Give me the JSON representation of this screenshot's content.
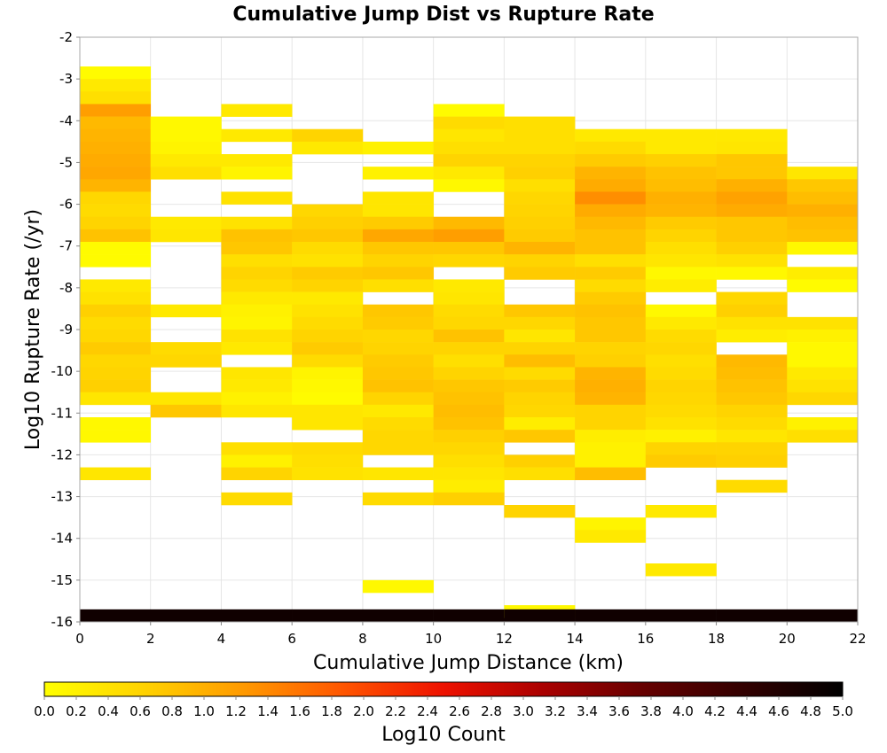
{
  "chart_data": {
    "type": "heatmap",
    "title": "Cumulative Jump Dist vs Rupture Rate",
    "xlabel": "Cumulative Jump Distance (km)",
    "ylabel": "Log10 Rupture Rate (/yr)",
    "colorbar_label": "Log10 Count",
    "xlim": [
      0,
      22
    ],
    "ylim": [
      -16,
      -2
    ],
    "x_ticks": [
      "0",
      "2",
      "4",
      "6",
      "8",
      "10",
      "12",
      "14",
      "16",
      "18",
      "20",
      "22"
    ],
    "y_ticks": [
      "-2",
      "-3",
      "-4",
      "-5",
      "-6",
      "-7",
      "-8",
      "-9",
      "-10",
      "-11",
      "-12",
      "-13",
      "-14",
      "-15",
      "-16"
    ],
    "colorbar_ticks": [
      "0.0",
      "0.2",
      "0.4",
      "0.6",
      "0.8",
      "1.0",
      "1.2",
      "1.4",
      "1.6",
      "1.8",
      "2.0",
      "2.2",
      "2.4",
      "2.6",
      "2.8",
      "3.0",
      "3.2",
      "3.4",
      "3.6",
      "3.8",
      "4.0",
      "4.2",
      "4.4",
      "4.6",
      "4.8",
      "5.0"
    ],
    "colorbar_range": [
      0,
      5
    ],
    "colormap": [
      "#ffff00",
      "#ffd200",
      "#ff9900",
      "#ff5500",
      "#ee1100",
      "#aa0000",
      "#660000",
      "#330000",
      "#000000"
    ],
    "grid": true,
    "x_bin_width": 2,
    "y_bin_height": 0.3,
    "columns": [
      {
        "x_start": 0,
        "cells": [
          [
            -3.0,
            0.05
          ],
          [
            -3.3,
            0.3
          ],
          [
            -3.6,
            0.45
          ],
          [
            -3.9,
            1.2
          ],
          [
            -4.2,
            0.9
          ],
          [
            -4.5,
            0.95
          ],
          [
            -4.8,
            1.0
          ],
          [
            -5.1,
            1.05
          ],
          [
            -5.4,
            1.1
          ],
          [
            -5.7,
            0.95
          ],
          [
            -6.0,
            0.55
          ],
          [
            -6.3,
            0.5
          ],
          [
            -6.6,
            0.6
          ],
          [
            -6.9,
            0.8
          ],
          [
            -7.2,
            0.05
          ],
          [
            -7.5,
            0.05
          ],
          [
            -8.1,
            0.3
          ],
          [
            -8.4,
            0.4
          ],
          [
            -8.7,
            0.65
          ],
          [
            -9.0,
            0.5
          ],
          [
            -9.3,
            0.55
          ],
          [
            -9.6,
            0.7
          ],
          [
            -9.9,
            0.55
          ],
          [
            -10.2,
            0.6
          ],
          [
            -10.5,
            0.65
          ],
          [
            -10.8,
            0.35
          ],
          [
            -11.4,
            0.1
          ],
          [
            -11.7,
            0.1
          ],
          [
            -12.6,
            0.35
          ],
          [
            -16.0,
            4.8
          ]
        ]
      },
      {
        "x_start": 2,
        "cells": [
          [
            -4.2,
            0.1
          ],
          [
            -4.5,
            0.1
          ],
          [
            -4.8,
            0.15
          ],
          [
            -5.1,
            0.3
          ],
          [
            -5.4,
            0.45
          ],
          [
            -6.6,
            0.3
          ],
          [
            -6.9,
            0.35
          ],
          [
            -8.7,
            0.3
          ],
          [
            -9.6,
            0.5
          ],
          [
            -9.9,
            0.55
          ],
          [
            -10.8,
            0.35
          ],
          [
            -11.1,
            0.75
          ],
          [
            -16.0,
            4.8
          ]
        ]
      },
      {
        "x_start": 4,
        "cells": [
          [
            -3.9,
            0.3
          ],
          [
            -4.5,
            0.3
          ],
          [
            -5.1,
            0.3
          ],
          [
            -5.4,
            0.15
          ],
          [
            -6.0,
            0.4
          ],
          [
            -6.6,
            0.4
          ],
          [
            -6.9,
            0.8
          ],
          [
            -7.2,
            0.75
          ],
          [
            -7.5,
            0.45
          ],
          [
            -7.8,
            0.6
          ],
          [
            -8.1,
            0.5
          ],
          [
            -8.4,
            0.3
          ],
          [
            -8.7,
            0.2
          ],
          [
            -9.0,
            0.15
          ],
          [
            -9.3,
            0.4
          ],
          [
            -9.6,
            0.3
          ],
          [
            -10.2,
            0.35
          ],
          [
            -10.5,
            0.3
          ],
          [
            -10.8,
            0.2
          ],
          [
            -11.1,
            0.35
          ],
          [
            -12.0,
            0.45
          ],
          [
            -12.3,
            0.2
          ],
          [
            -12.6,
            0.6
          ],
          [
            -13.2,
            0.5
          ],
          [
            -16.0,
            4.8
          ]
        ]
      },
      {
        "x_start": 6,
        "cells": [
          [
            -4.5,
            0.6
          ],
          [
            -4.8,
            0.3
          ],
          [
            -6.3,
            0.55
          ],
          [
            -6.6,
            0.65
          ],
          [
            -6.9,
            0.75
          ],
          [
            -7.2,
            0.5
          ],
          [
            -7.5,
            0.4
          ],
          [
            -7.8,
            0.7
          ],
          [
            -8.1,
            0.6
          ],
          [
            -8.4,
            0.3
          ],
          [
            -8.7,
            0.4
          ],
          [
            -9.0,
            0.5
          ],
          [
            -9.3,
            0.6
          ],
          [
            -9.6,
            0.7
          ],
          [
            -9.9,
            0.5
          ],
          [
            -10.2,
            0.15
          ],
          [
            -10.5,
            0.1
          ],
          [
            -10.8,
            0.05
          ],
          [
            -11.1,
            0.35
          ],
          [
            -11.4,
            0.35
          ],
          [
            -12.0,
            0.5
          ],
          [
            -12.3,
            0.45
          ],
          [
            -12.6,
            0.4
          ],
          [
            -16.0,
            4.8
          ]
        ]
      },
      {
        "x_start": 8,
        "cells": [
          [
            -4.8,
            0.2
          ],
          [
            -5.4,
            0.2
          ],
          [
            -6.0,
            0.35
          ],
          [
            -6.3,
            0.35
          ],
          [
            -6.6,
            0.7
          ],
          [
            -6.9,
            1.1
          ],
          [
            -7.2,
            0.75
          ],
          [
            -7.5,
            0.6
          ],
          [
            -7.8,
            0.75
          ],
          [
            -8.1,
            0.45
          ],
          [
            -8.7,
            0.75
          ],
          [
            -9.0,
            0.7
          ],
          [
            -9.3,
            0.55
          ],
          [
            -9.6,
            0.6
          ],
          [
            -9.9,
            0.7
          ],
          [
            -10.2,
            0.75
          ],
          [
            -10.5,
            0.8
          ],
          [
            -10.8,
            0.6
          ],
          [
            -11.1,
            0.3
          ],
          [
            -11.4,
            0.5
          ],
          [
            -11.7,
            0.55
          ],
          [
            -12.0,
            0.55
          ],
          [
            -12.6,
            0.35
          ],
          [
            -13.2,
            0.5
          ],
          [
            -15.3,
            0.1
          ],
          [
            -16.0,
            4.8
          ]
        ]
      },
      {
        "x_start": 10,
        "cells": [
          [
            -3.9,
            0.05
          ],
          [
            -4.2,
            0.5
          ],
          [
            -4.5,
            0.35
          ],
          [
            -4.8,
            0.45
          ],
          [
            -5.1,
            0.6
          ],
          [
            -5.4,
            0.3
          ],
          [
            -5.7,
            0.1
          ],
          [
            -6.6,
            0.9
          ],
          [
            -6.9,
            1.2
          ],
          [
            -7.2,
            0.75
          ],
          [
            -7.5,
            0.55
          ],
          [
            -8.1,
            0.3
          ],
          [
            -8.4,
            0.35
          ],
          [
            -8.7,
            0.5
          ],
          [
            -9.0,
            0.55
          ],
          [
            -9.3,
            0.8
          ],
          [
            -9.6,
            0.6
          ],
          [
            -9.9,
            0.45
          ],
          [
            -10.2,
            0.6
          ],
          [
            -10.5,
            0.75
          ],
          [
            -10.8,
            0.8
          ],
          [
            -11.1,
            0.85
          ],
          [
            -11.4,
            0.8
          ],
          [
            -11.7,
            0.65
          ],
          [
            -12.0,
            0.55
          ],
          [
            -12.3,
            0.45
          ],
          [
            -12.6,
            0.35
          ],
          [
            -12.9,
            0.25
          ],
          [
            -13.2,
            0.65
          ],
          [
            -16.0,
            4.8
          ]
        ]
      },
      {
        "x_start": 12,
        "cells": [
          [
            -4.2,
            0.45
          ],
          [
            -4.5,
            0.45
          ],
          [
            -4.8,
            0.45
          ],
          [
            -5.1,
            0.6
          ],
          [
            -5.4,
            0.65
          ],
          [
            -5.7,
            0.45
          ],
          [
            -6.0,
            0.55
          ],
          [
            -6.3,
            0.6
          ],
          [
            -6.6,
            0.65
          ],
          [
            -6.9,
            0.7
          ],
          [
            -7.2,
            0.95
          ],
          [
            -7.5,
            0.6
          ],
          [
            -7.8,
            0.7
          ],
          [
            -8.7,
            0.75
          ],
          [
            -9.0,
            0.55
          ],
          [
            -9.3,
            0.35
          ],
          [
            -9.6,
            0.6
          ],
          [
            -9.9,
            0.85
          ],
          [
            -10.2,
            0.5
          ],
          [
            -10.5,
            0.7
          ],
          [
            -10.8,
            0.6
          ],
          [
            -11.1,
            0.55
          ],
          [
            -11.4,
            0.25
          ],
          [
            -11.7,
            0.75
          ],
          [
            -12.3,
            0.65
          ],
          [
            -12.6,
            0.45
          ],
          [
            -13.5,
            0.6
          ],
          [
            -15.9,
            0.1
          ],
          [
            -16.0,
            4.8
          ]
        ]
      },
      {
        "x_start": 14,
        "cells": [
          [
            -4.5,
            0.3
          ],
          [
            -4.8,
            0.5
          ],
          [
            -5.1,
            0.7
          ],
          [
            -5.4,
            0.95
          ],
          [
            -5.7,
            1.05
          ],
          [
            -6.0,
            1.35
          ],
          [
            -6.3,
            1.05
          ],
          [
            -6.6,
            0.9
          ],
          [
            -6.9,
            0.8
          ],
          [
            -7.2,
            0.8
          ],
          [
            -7.5,
            0.45
          ],
          [
            -7.8,
            0.7
          ],
          [
            -8.1,
            0.5
          ],
          [
            -8.4,
            0.7
          ],
          [
            -8.7,
            0.8
          ],
          [
            -9.0,
            0.75
          ],
          [
            -9.3,
            0.75
          ],
          [
            -9.6,
            0.6
          ],
          [
            -9.9,
            0.65
          ],
          [
            -10.2,
            0.95
          ],
          [
            -10.5,
            1.0
          ],
          [
            -10.8,
            0.95
          ],
          [
            -11.1,
            0.6
          ],
          [
            -11.4,
            0.6
          ],
          [
            -11.7,
            0.25
          ],
          [
            -12.0,
            0.2
          ],
          [
            -12.3,
            0.2
          ],
          [
            -12.6,
            0.85
          ],
          [
            -13.8,
            0.15
          ],
          [
            -14.1,
            0.3
          ],
          [
            -16.0,
            4.8
          ]
        ]
      },
      {
        "x_start": 16,
        "cells": [
          [
            -4.5,
            0.3
          ],
          [
            -4.8,
            0.3
          ],
          [
            -5.1,
            0.65
          ],
          [
            -5.4,
            0.8
          ],
          [
            -5.7,
            0.85
          ],
          [
            -6.0,
            1.0
          ],
          [
            -6.3,
            0.95
          ],
          [
            -6.6,
            0.7
          ],
          [
            -6.9,
            0.6
          ],
          [
            -7.2,
            0.45
          ],
          [
            -7.5,
            0.35
          ],
          [
            -7.8,
            0.1
          ],
          [
            -8.1,
            0.25
          ],
          [
            -8.7,
            0.1
          ],
          [
            -9.0,
            0.3
          ],
          [
            -9.3,
            0.5
          ],
          [
            -9.6,
            0.55
          ],
          [
            -9.9,
            0.45
          ],
          [
            -10.2,
            0.5
          ],
          [
            -10.5,
            0.6
          ],
          [
            -10.8,
            0.55
          ],
          [
            -11.1,
            0.5
          ],
          [
            -11.4,
            0.4
          ],
          [
            -11.7,
            0.2
          ],
          [
            -12.0,
            0.6
          ],
          [
            -12.3,
            0.7
          ],
          [
            -13.5,
            0.3
          ],
          [
            -14.9,
            0.3
          ],
          [
            -16.0,
            4.8
          ]
        ]
      },
      {
        "x_start": 18,
        "cells": [
          [
            -4.5,
            0.3
          ],
          [
            -4.8,
            0.35
          ],
          [
            -5.1,
            0.75
          ],
          [
            -5.4,
            0.75
          ],
          [
            -5.7,
            1.0
          ],
          [
            -6.0,
            1.15
          ],
          [
            -6.3,
            1.05
          ],
          [
            -6.6,
            0.75
          ],
          [
            -6.9,
            0.75
          ],
          [
            -7.2,
            0.65
          ],
          [
            -7.5,
            0.4
          ],
          [
            -7.8,
            0.1
          ],
          [
            -8.4,
            0.55
          ],
          [
            -8.7,
            0.65
          ],
          [
            -9.0,
            0.4
          ],
          [
            -9.3,
            0.25
          ],
          [
            -9.9,
            0.9
          ],
          [
            -10.2,
            0.85
          ],
          [
            -10.5,
            0.8
          ],
          [
            -10.8,
            0.75
          ],
          [
            -11.1,
            0.6
          ],
          [
            -11.4,
            0.5
          ],
          [
            -11.7,
            0.35
          ],
          [
            -12.0,
            0.6
          ],
          [
            -12.3,
            0.65
          ],
          [
            -12.9,
            0.5
          ],
          [
            -16.0,
            4.8
          ]
        ]
      },
      {
        "x_start": 20,
        "cells": [
          [
            -5.4,
            0.35
          ],
          [
            -5.7,
            0.75
          ],
          [
            -6.0,
            0.85
          ],
          [
            -6.3,
            1.0
          ],
          [
            -6.6,
            0.85
          ],
          [
            -6.9,
            0.8
          ],
          [
            -7.2,
            0.1
          ],
          [
            -7.8,
            0.25
          ],
          [
            -8.1,
            0.05
          ],
          [
            -9.0,
            0.4
          ],
          [
            -9.3,
            0.2
          ],
          [
            -9.6,
            0.1
          ],
          [
            -9.9,
            0.1
          ],
          [
            -10.2,
            0.3
          ],
          [
            -10.5,
            0.4
          ],
          [
            -10.8,
            0.55
          ],
          [
            -11.4,
            0.2
          ],
          [
            -11.7,
            0.45
          ],
          [
            -16.0,
            4.8
          ]
        ]
      }
    ]
  }
}
